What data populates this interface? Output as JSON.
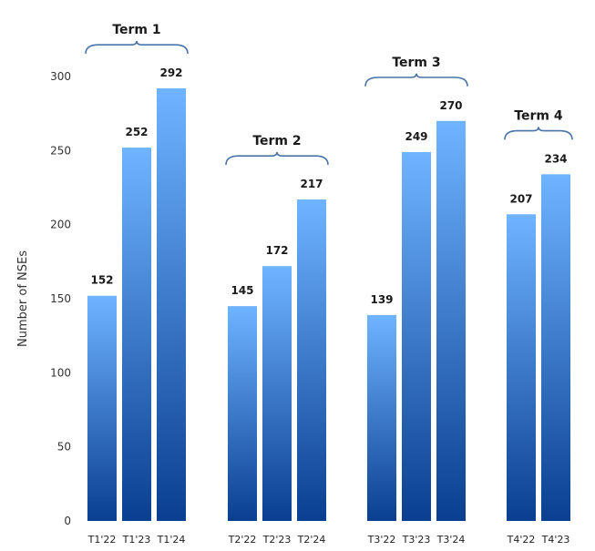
{
  "chart_data": {
    "type": "bar",
    "title": "",
    "xlabel": "",
    "ylabel": "Number of NSEs",
    "ylim": [
      0,
      300
    ],
    "yticks": [
      0,
      50,
      100,
      150,
      200,
      250,
      300
    ],
    "grid": false,
    "groups": [
      {
        "name": "Term 1",
        "categories": [
          "T1'22",
          "T1'23",
          "T1'24"
        ],
        "values": [
          152,
          252,
          292
        ]
      },
      {
        "name": "Term 2",
        "categories": [
          "T2'22",
          "T2'23",
          "T2'24"
        ],
        "values": [
          145,
          172,
          217
        ]
      },
      {
        "name": "Term 3",
        "categories": [
          "T3'22",
          "T3'23",
          "T3'24"
        ],
        "values": [
          139,
          249,
          270
        ]
      },
      {
        "name": "Term 4",
        "categories": [
          "T4'22",
          "T4'23"
        ],
        "values": [
          207,
          234
        ]
      }
    ],
    "colors": {
      "bar_top": "#6fb4ff",
      "bar_bottom": "#0a3f8f",
      "brace": "#4a74a8"
    }
  }
}
